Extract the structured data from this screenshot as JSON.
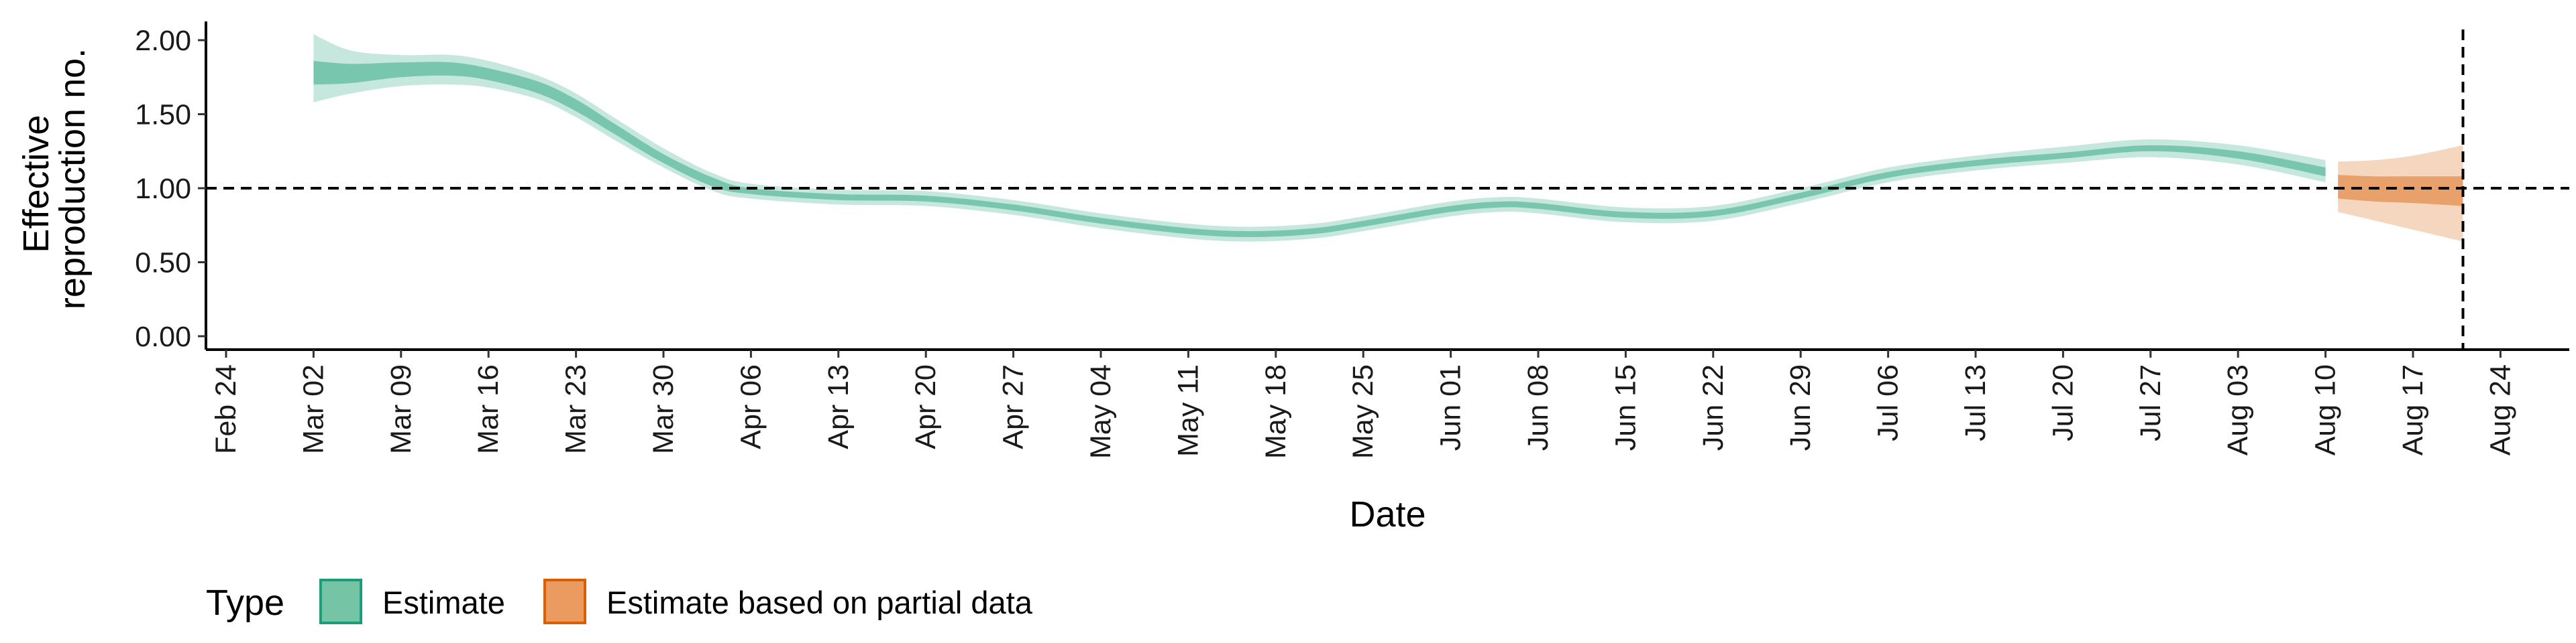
{
  "chart_data": {
    "type": "area",
    "title": "",
    "xlabel": "Date",
    "ylabel_lines": [
      "Effective",
      "reproduction no."
    ],
    "x_ticks": [
      "Feb 24",
      "Mar 02",
      "Mar 09",
      "Mar 16",
      "Mar 23",
      "Mar 30",
      "Apr 06",
      "Apr 13",
      "Apr 20",
      "Apr 27",
      "May 04",
      "May 11",
      "May 18",
      "May 25",
      "Jun 01",
      "Jun 08",
      "Jun 15",
      "Jun 22",
      "Jun 29",
      "Jul 06",
      "Jul 13",
      "Jul 20",
      "Jul 27",
      "Aug 03",
      "Aug 10",
      "Aug 17",
      "Aug 24"
    ],
    "y_ticks": [
      "0.00",
      "0.50",
      "1.00",
      "1.50",
      "2.00"
    ],
    "ylim": [
      0,
      2.15
    ],
    "x_start_date": "2020-02-24",
    "reference_hline": 1.0,
    "reference_vline": "2020-08-21",
    "colors": {
      "Estimate": "#1B9E77",
      "Estimate based on partial data": "#D95F02"
    },
    "legend": {
      "title": "Type",
      "position": "bottom",
      "items": [
        {
          "label": "Estimate",
          "swatch_fill": "#74C4A5",
          "swatch_stroke": "#1B9E77"
        },
        {
          "label": "Estimate based on partial data",
          "swatch_fill": "#EB9B5F",
          "swatch_stroke": "#D95F02"
        }
      ]
    },
    "series": [
      {
        "name": "Estimate",
        "color": "#1B9E77",
        "points": [
          {
            "date": "2020-03-02",
            "median": 1.78,
            "lower50": 1.7,
            "upper50": 1.86,
            "lower90": 1.58,
            "upper90": 2.04
          },
          {
            "date": "2020-03-05",
            "median": 1.78,
            "lower50": 1.71,
            "upper50": 1.84,
            "lower90": 1.64,
            "upper90": 1.93
          },
          {
            "date": "2020-03-09",
            "median": 1.8,
            "lower50": 1.75,
            "upper50": 1.85,
            "lower90": 1.69,
            "upper90": 1.9
          },
          {
            "date": "2020-03-13",
            "median": 1.8,
            "lower50": 1.76,
            "upper50": 1.85,
            "lower90": 1.7,
            "upper90": 1.9
          },
          {
            "date": "2020-03-16",
            "median": 1.77,
            "lower50": 1.73,
            "upper50": 1.81,
            "lower90": 1.68,
            "upper90": 1.86
          },
          {
            "date": "2020-03-20",
            "median": 1.68,
            "lower50": 1.64,
            "upper50": 1.72,
            "lower90": 1.6,
            "upper90": 1.76
          },
          {
            "date": "2020-03-23",
            "median": 1.56,
            "lower50": 1.52,
            "upper50": 1.6,
            "lower90": 1.48,
            "upper90": 1.64
          },
          {
            "date": "2020-03-26",
            "median": 1.4,
            "lower50": 1.37,
            "upper50": 1.44,
            "lower90": 1.33,
            "upper90": 1.48
          },
          {
            "date": "2020-03-30",
            "median": 1.2,
            "lower50": 1.17,
            "upper50": 1.23,
            "lower90": 1.14,
            "upper90": 1.27
          },
          {
            "date": "2020-04-03",
            "median": 1.04,
            "lower50": 1.01,
            "upper50": 1.07,
            "lower90": 0.98,
            "upper90": 1.1
          },
          {
            "date": "2020-04-06",
            "median": 0.98,
            "lower50": 0.96,
            "upper50": 1.0,
            "lower90": 0.93,
            "upper90": 1.03
          },
          {
            "date": "2020-04-13",
            "median": 0.94,
            "lower50": 0.92,
            "upper50": 0.96,
            "lower90": 0.89,
            "upper90": 0.99
          },
          {
            "date": "2020-04-20",
            "median": 0.93,
            "lower50": 0.91,
            "upper50": 0.95,
            "lower90": 0.88,
            "upper90": 0.98
          },
          {
            "date": "2020-04-27",
            "median": 0.87,
            "lower50": 0.85,
            "upper50": 0.89,
            "lower90": 0.82,
            "upper90": 0.92
          },
          {
            "date": "2020-05-04",
            "median": 0.78,
            "lower50": 0.76,
            "upper50": 0.8,
            "lower90": 0.73,
            "upper90": 0.83
          },
          {
            "date": "2020-05-11",
            "median": 0.71,
            "lower50": 0.69,
            "upper50": 0.73,
            "lower90": 0.66,
            "upper90": 0.76
          },
          {
            "date": "2020-05-16",
            "median": 0.69,
            "lower50": 0.67,
            "upper50": 0.71,
            "lower90": 0.64,
            "upper90": 0.74
          },
          {
            "date": "2020-05-21",
            "median": 0.71,
            "lower50": 0.69,
            "upper50": 0.73,
            "lower90": 0.66,
            "upper90": 0.76
          },
          {
            "date": "2020-05-25",
            "median": 0.76,
            "lower50": 0.74,
            "upper50": 0.78,
            "lower90": 0.71,
            "upper90": 0.81
          },
          {
            "date": "2020-06-01",
            "median": 0.86,
            "lower50": 0.84,
            "upper50": 0.88,
            "lower90": 0.81,
            "upper90": 0.91
          },
          {
            "date": "2020-06-05",
            "median": 0.89,
            "lower50": 0.87,
            "upper50": 0.91,
            "lower90": 0.84,
            "upper90": 0.94
          },
          {
            "date": "2020-06-08",
            "median": 0.88,
            "lower50": 0.86,
            "upper50": 0.9,
            "lower90": 0.83,
            "upper90": 0.93
          },
          {
            "date": "2020-06-15",
            "median": 0.82,
            "lower50": 0.8,
            "upper50": 0.84,
            "lower90": 0.77,
            "upper90": 0.87
          },
          {
            "date": "2020-06-22",
            "median": 0.83,
            "lower50": 0.81,
            "upper50": 0.85,
            "lower90": 0.78,
            "upper90": 0.88
          },
          {
            "date": "2020-06-29",
            "median": 0.95,
            "lower50": 0.93,
            "upper50": 0.97,
            "lower90": 0.9,
            "upper90": 1.0
          },
          {
            "date": "2020-07-06",
            "median": 1.09,
            "lower50": 1.07,
            "upper50": 1.11,
            "lower90": 1.04,
            "upper90": 1.14
          },
          {
            "date": "2020-07-13",
            "median": 1.17,
            "lower50": 1.15,
            "upper50": 1.19,
            "lower90": 1.12,
            "upper90": 1.22
          },
          {
            "date": "2020-07-20",
            "median": 1.22,
            "lower50": 1.2,
            "upper50": 1.24,
            "lower90": 1.17,
            "upper90": 1.28
          },
          {
            "date": "2020-07-27",
            "median": 1.27,
            "lower50": 1.25,
            "upper50": 1.29,
            "lower90": 1.21,
            "upper90": 1.33
          },
          {
            "date": "2020-08-03",
            "median": 1.22,
            "lower50": 1.2,
            "upper50": 1.25,
            "lower90": 1.16,
            "upper90": 1.29
          },
          {
            "date": "2020-08-10",
            "median": 1.11,
            "lower50": 1.08,
            "upper50": 1.14,
            "lower90": 1.04,
            "upper90": 1.19
          }
        ]
      },
      {
        "name": "Estimate based on partial data",
        "color": "#D95F02",
        "points": [
          {
            "date": "2020-08-11",
            "median": 1.02,
            "lower50": 0.93,
            "upper50": 1.09,
            "lower90": 0.84,
            "upper90": 1.18
          },
          {
            "date": "2020-08-14",
            "median": 1.01,
            "lower50": 0.91,
            "upper50": 1.08,
            "lower90": 0.78,
            "upper90": 1.19
          },
          {
            "date": "2020-08-17",
            "median": 1.0,
            "lower50": 0.9,
            "upper50": 1.08,
            "lower90": 0.72,
            "upper90": 1.22
          },
          {
            "date": "2020-08-21",
            "median": 0.98,
            "lower50": 0.88,
            "upper50": 1.08,
            "lower90": 0.64,
            "upper90": 1.29
          }
        ]
      }
    ]
  }
}
